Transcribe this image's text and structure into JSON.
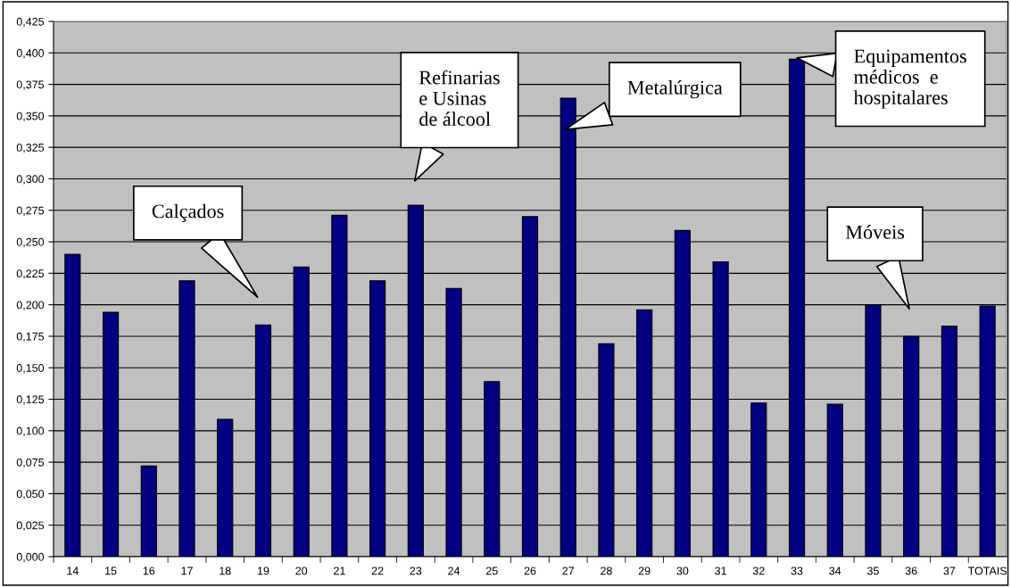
{
  "chart_data": {
    "type": "bar",
    "categories": [
      "14",
      "15",
      "16",
      "17",
      "18",
      "19",
      "20",
      "21",
      "22",
      "23",
      "24",
      "25",
      "26",
      "27",
      "28",
      "29",
      "30",
      "31",
      "32",
      "33",
      "34",
      "35",
      "36",
      "37",
      "TOTAIS"
    ],
    "values": [
      0.24,
      0.194,
      0.072,
      0.219,
      0.109,
      0.184,
      0.23,
      0.271,
      0.219,
      0.279,
      0.213,
      0.139,
      0.27,
      0.364,
      0.169,
      0.196,
      0.259,
      0.234,
      0.122,
      0.395,
      0.121,
      0.2,
      0.175,
      0.183,
      0.199
    ],
    "color": "#000080",
    "ylim": [
      0,
      0.425
    ],
    "yticks": [
      {
        "value": 0,
        "label": "0,000"
      },
      {
        "value": 0.025,
        "label": "0,025"
      },
      {
        "value": 0.05,
        "label": "0,050"
      },
      {
        "value": 0.075,
        "label": "0,075"
      },
      {
        "value": 0.1,
        "label": "0,100"
      },
      {
        "value": 0.125,
        "label": "0,125"
      },
      {
        "value": 0.15,
        "label": "0,150"
      },
      {
        "value": 0.175,
        "label": "0,175"
      },
      {
        "value": 0.2,
        "label": "0,200"
      },
      {
        "value": 0.225,
        "label": "0,225"
      },
      {
        "value": 0.25,
        "label": "0,250"
      },
      {
        "value": 0.275,
        "label": "0,275"
      },
      {
        "value": 0.3,
        "label": "0,300"
      },
      {
        "value": 0.325,
        "label": "0,325"
      },
      {
        "value": 0.35,
        "label": "0,350"
      },
      {
        "value": 0.375,
        "label": "0,375"
      },
      {
        "value": 0.4,
        "label": "0,400"
      },
      {
        "value": 0.425,
        "label": "0,425"
      }
    ],
    "grid": "y",
    "legend": false,
    "annotations": [
      "Calçados",
      "Refinarias\ne Usinas\nde álcool",
      "Metalúrgica",
      "Equipamentos\nmédicos  e\nhospitalares",
      "Móveis"
    ]
  }
}
